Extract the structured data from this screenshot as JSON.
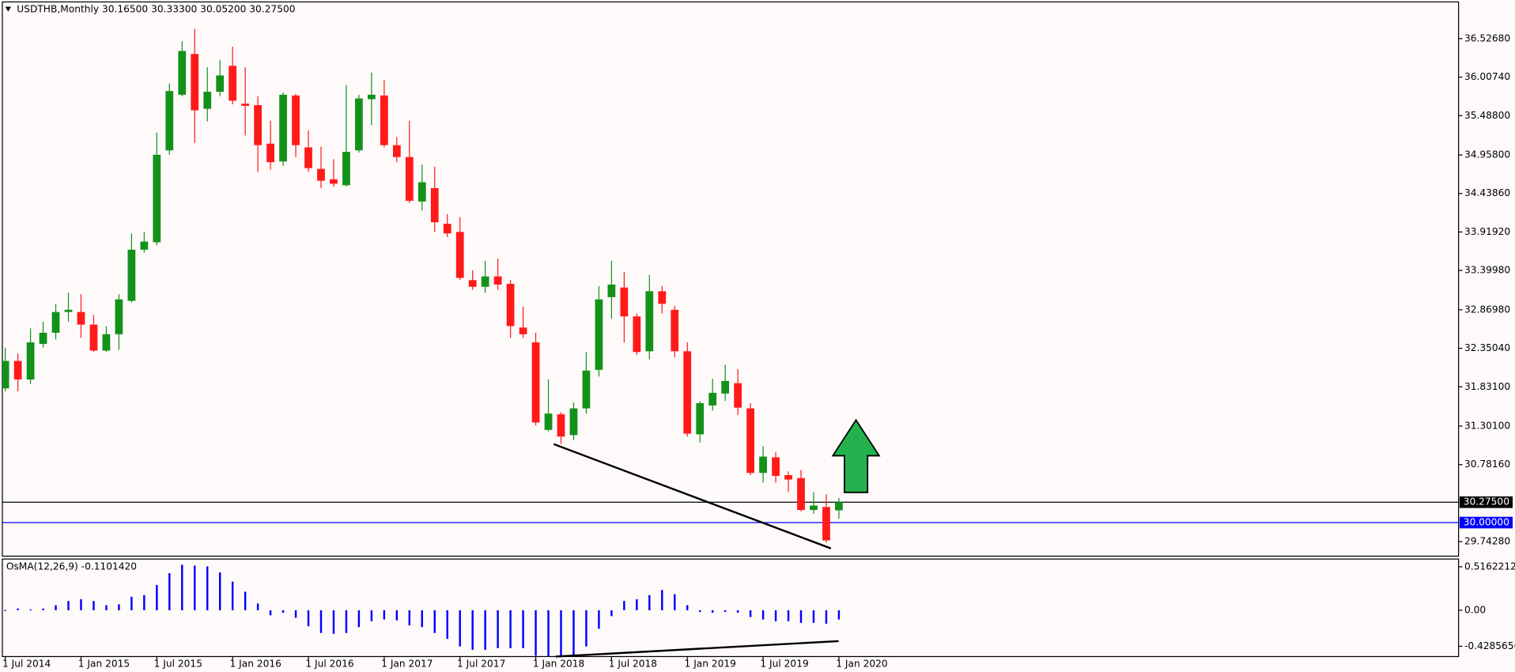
{
  "chart_data": [
    {
      "type": "candlestick",
      "title": "USDTHB,Monthly  30.16500 30.33300 30.05200 30.27500",
      "open": [
        31.81,
        32.18,
        31.93,
        32.41,
        32.56,
        32.84,
        32.84,
        32.67,
        32.32,
        32.54,
        32.99,
        33.68,
        33.78,
        35.02,
        35.77,
        36.32,
        35.58,
        35.81,
        36.16,
        35.65,
        35.63,
        35.11,
        34.87,
        35.76,
        35.06,
        34.77,
        34.63,
        34.55,
        35.02,
        35.71,
        35.76,
        35.09,
        34.93,
        34.33,
        34.51,
        34.03,
        33.92,
        33.27,
        33.18,
        33.32,
        33.22,
        32.63,
        32.43,
        31.25,
        31.46,
        31.18,
        31.54,
        32.06,
        33.04,
        33.17,
        32.78,
        32.31,
        33.12,
        32.87,
        32.31,
        31.19,
        31.58,
        31.74,
        31.88,
        31.54,
        30.67,
        30.88,
        30.64,
        30.6,
        30.17,
        30.21,
        30.165
      ],
      "high": [
        32.36,
        32.28,
        32.62,
        32.71,
        32.95,
        33.1,
        33.08,
        32.8,
        32.65,
        33.08,
        33.9,
        33.92,
        35.26,
        35.92,
        36.49,
        36.66,
        36.14,
        36.24,
        36.42,
        36.14,
        35.75,
        35.42,
        35.8,
        35.78,
        35.29,
        35.07,
        34.9,
        35.9,
        35.77,
        36.07,
        35.97,
        35.2,
        35.42,
        34.83,
        34.8,
        34.16,
        34.12,
        33.4,
        33.53,
        33.56,
        33.27,
        32.91,
        32.56,
        31.93,
        31.49,
        31.62,
        32.3,
        33.19,
        33.53,
        33.38,
        32.82,
        33.34,
        33.19,
        32.92,
        32.43,
        31.64,
        31.94,
        32.13,
        32.07,
        31.61,
        31.03,
        30.95,
        30.69,
        30.71,
        30.41,
        30.38,
        30.333
      ],
      "low": [
        31.77,
        31.77,
        31.87,
        32.36,
        32.47,
        32.71,
        32.49,
        32.3,
        32.3,
        32.33,
        32.97,
        33.64,
        33.74,
        34.96,
        35.75,
        35.12,
        35.41,
        35.75,
        35.64,
        35.22,
        34.73,
        34.76,
        34.81,
        34.93,
        34.73,
        34.51,
        34.53,
        34.53,
        34.99,
        35.36,
        35.06,
        34.86,
        34.31,
        34.21,
        33.92,
        33.85,
        33.27,
        33.14,
        33.1,
        33.14,
        32.49,
        32.49,
        31.31,
        31.23,
        31.06,
        31.11,
        31.47,
        31.97,
        32.75,
        32.43,
        32.26,
        32.2,
        32.82,
        32.23,
        31.16,
        31.08,
        31.51,
        31.64,
        31.45,
        30.64,
        30.54,
        30.54,
        30.41,
        30.15,
        30.12,
        29.73,
        30.052
      ],
      "close": [
        32.18,
        31.93,
        32.43,
        32.56,
        32.84,
        32.87,
        32.67,
        32.32,
        32.54,
        33.01,
        33.68,
        33.79,
        34.96,
        35.82,
        36.36,
        35.56,
        35.81,
        36.03,
        35.69,
        35.62,
        35.09,
        34.86,
        35.77,
        35.09,
        34.78,
        34.61,
        34.57,
        35.0,
        35.72,
        35.77,
        35.09,
        34.93,
        34.34,
        34.59,
        34.05,
        33.9,
        33.3,
        33.18,
        33.32,
        33.21,
        32.65,
        32.54,
        31.35,
        31.47,
        31.16,
        31.54,
        32.05,
        33.01,
        33.21,
        32.78,
        32.3,
        33.12,
        32.95,
        32.31,
        31.2,
        31.61,
        31.75,
        31.91,
        31.55,
        30.67,
        30.89,
        30.63,
        30.58,
        30.17,
        30.23,
        29.76,
        30.275
      ],
      "up_color": "#13921b",
      "down_color": "#ff1a1a",
      "ylim": [
        29.5475,
        37.0216
      ],
      "yticks": [
        {
          "value": 36.5268,
          "label": "36.52680"
        },
        {
          "value": 36.0074,
          "label": "36.00740"
        },
        {
          "value": 35.488,
          "label": "35.48800"
        },
        {
          "value": 34.958,
          "label": "34.95800"
        },
        {
          "value": 34.4386,
          "label": "34.43860"
        },
        {
          "value": 33.9192,
          "label": "33.91920"
        },
        {
          "value": 33.3998,
          "label": "33.39980"
        },
        {
          "value": 32.8698,
          "label": "32.86980"
        },
        {
          "value": 32.3504,
          "label": "32.35040"
        },
        {
          "value": 31.831,
          "label": "31.83100"
        },
        {
          "value": 31.301,
          "label": "31.30100"
        },
        {
          "value": 30.7816,
          "label": "30.78160"
        },
        {
          "value": 29.7428,
          "label": "29.74280"
        }
      ],
      "hlines": [
        {
          "value": 30.275,
          "label": "30.27500",
          "color": "#000000"
        },
        {
          "value": 30,
          "label": "30.00000",
          "color": "#0000ff"
        }
      ]
    },
    {
      "type": "bar",
      "title": "OsMA(12,26,9) -0.1101420",
      "categories": [
        "1 Jul 2014",
        null,
        null,
        null,
        null,
        null,
        "1 Jan 2015",
        null,
        null,
        null,
        null,
        null,
        "1 Jul 2015",
        null,
        null,
        null,
        null,
        null,
        "1 Jan 2016",
        null,
        null,
        null,
        null,
        null,
        "1 Jul 2016",
        null,
        null,
        null,
        null,
        null,
        "1 Jan 2017",
        null,
        null,
        null,
        null,
        null,
        "1 Jul 2017",
        null,
        null,
        null,
        null,
        null,
        "1 Jan 2018",
        null,
        null,
        null,
        null,
        null,
        "1 Jul 2018",
        null,
        null,
        null,
        null,
        null,
        "1 Jan 2019",
        null,
        null,
        null,
        null,
        null,
        "1 Jul 2019",
        null,
        null,
        null,
        null,
        null,
        "1 Jan 2020"
      ],
      "values": [
        0.002,
        0.02,
        0.01,
        0.02,
        0.06,
        0.11,
        0.13,
        0.11,
        0.06,
        0.07,
        0.16,
        0.18,
        0.3,
        0.44,
        0.54,
        0.53,
        0.52,
        0.45,
        0.34,
        0.22,
        0.08,
        -0.06,
        -0.03,
        -0.09,
        -0.19,
        -0.27,
        -0.28,
        -0.27,
        -0.2,
        -0.13,
        -0.11,
        -0.12,
        -0.18,
        -0.2,
        -0.27,
        -0.34,
        -0.43,
        -0.47,
        -0.47,
        -0.45,
        -0.45,
        -0.45,
        -0.54,
        -0.58,
        -0.58,
        -0.54,
        -0.43,
        -0.22,
        -0.07,
        0.11,
        0.13,
        0.18,
        0.24,
        0.19,
        0.06,
        -0.02,
        -0.03,
        -0.02,
        -0.03,
        -0.08,
        -0.11,
        -0.13,
        -0.13,
        -0.15,
        -0.15,
        -0.16,
        -0.110142
      ],
      "color": "#0000ff",
      "ylim": [
        -0.55,
        0.608
      ],
      "yticks": [
        0.5162212,
        {
          "value": 0,
          "label": "0.00"
        },
        -0.4285656
      ]
    }
  ]
}
